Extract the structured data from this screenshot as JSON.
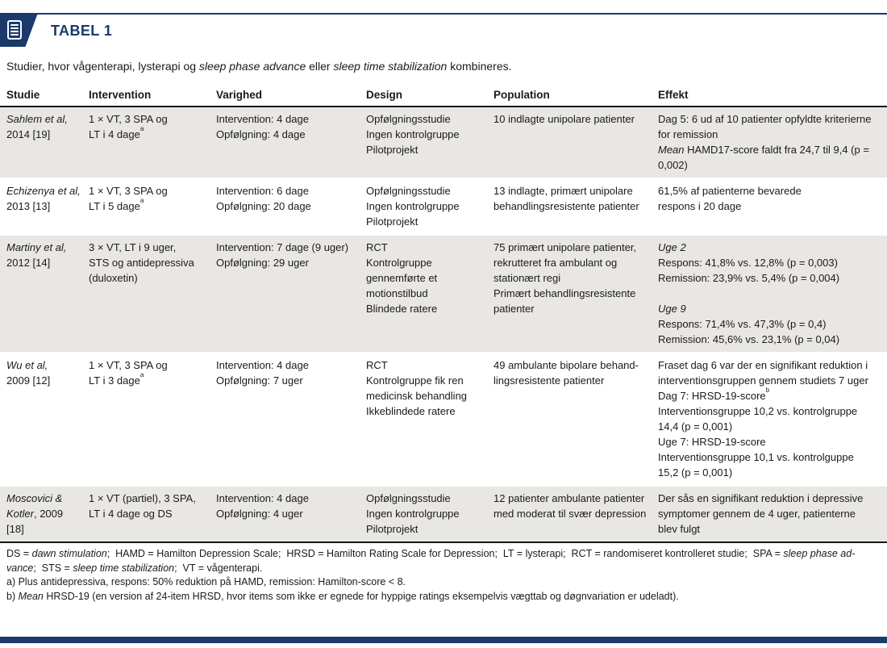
{
  "theme": {
    "accent_color": "#1b3a6b",
    "row_alt_color": "#e9e7e4",
    "icon": "table-list-icon"
  },
  "header": {
    "title": "TABEL 1"
  },
  "caption": "Studier, hvor vågenterapi, lysterapi og *sleep phase advance* eller *sleep time stabilization* kombineres.",
  "table": {
    "columns": [
      "Studie",
      "Intervention",
      "Varighed",
      "Design",
      "Population",
      "Effekt"
    ],
    "fields": [
      "studie",
      "intervention",
      "varighed",
      "design",
      "population",
      "effekt"
    ],
    "rows": [
      {
        "studie": "*Sahlem et al,*\n2014 [19]",
        "intervention": "1 × VT, 3 SPA og\nLT i 4 dage^a",
        "varighed": "Intervention: 4 dage\nOpfølgning: 4 dage",
        "design": "Opfølgningsstudie\nIngen kontrolgruppe\nPilotprojekt",
        "population": "10 indlagte unipolare patienter",
        "effekt": "Dag 5: 6 ud af 10 patienter opfyldte kriterierne for remission\n*Mean* HAMD17-score faldt fra 24,7 til 9,4 (p = 0,002)"
      },
      {
        "studie": "*Echizenya et al,*\n2013 [13]",
        "intervention": "1 × VT, 3 SPA og\nLT i 5 dage^a",
        "varighed": "Intervention: 6 dage\nOpfølgning: 20 dage",
        "design": "Opfølgningsstudie\nIngen kontrolgruppe\nPilotprojekt",
        "population": "13 indlagte, primært unipolare behandlingsresistente patienter",
        "effekt": "61,5% af patienterne bevarede\nrespons i 20 dage"
      },
      {
        "studie": "*Martiny et al,*\n2012 [14]",
        "intervention": "3 × VT, LT i 9 uger,\nSTS og antidepressiva\n(duloxetin)",
        "varighed": "Intervention: 7 dage (9 uger)\nOpfølgning: 29 uger",
        "design": "RCT\nKontrolgruppe\ngennemførte et\nmotionstilbud\nBlindede ratere",
        "population": "75 primært unipolare patienter, rekrutteret fra ambulant og stationært regi\nPrimært behandlingsresistente patienter",
        "effekt": "*Uge 2*\nRespons: 41,8% vs. 12,8% (p = 0,003)\nRemission: 23,9% vs. 5,4% (p = 0,004)\n\n*Uge 9*\nRespons: 71,4% vs. 47,3% (p = 0,4)\nRemission: 45,6% vs. 23,1% (p = 0,04)"
      },
      {
        "studie": "*Wu et al,*\n2009 [12]",
        "intervention": "1 × VT, 3 SPA og\nLT i 3 dage^a",
        "varighed": "Intervention: 4 dage\nOpfølgning: 7 uger",
        "design": "RCT\nKontrolgruppe fik ren\nmedicinsk behandling\nIkkeblindede ratere",
        "population": "49 ambulante bipolare behand-\nlingsresistente patienter",
        "effekt": "Fraset dag 6 var der en signifikant reduktion i interventionsgruppen gennem studiets 7 uger\nDag 7: HRSD-19-score^b\nInterventionsgruppe 10,2 vs. kontrolgruppe 14,4 (p = 0,001)\nUge 7: HRSD-19-score\nInterventionsgruppe 10,1 vs. kontrolguppe 15,2 (p = 0,001)"
      },
      {
        "studie": "*Moscovici &*\n*Kotler*, 2009\n[18]",
        "intervention": "1 × VT (partiel), 3 SPA,\nLT i 4 dage og DS",
        "varighed": "Intervention: 4 dage\nOpfølgning: 4 uger",
        "design": "Opfølgningsstudie\nIngen kontrolgruppe\nPilotprojekt",
        "population": "12 patienter ambulante patienter med moderat til svær depression",
        "effekt": "Der sås en signifikant reduktion i depressive symptomer gennem de 4 uger, patienterne blev fulgt"
      }
    ]
  },
  "footnotes": [
    "DS = *dawn stimulation*;  HAMD = Hamilton Depression Scale;  HRSD = Hamilton Rating Scale for Depression;  LT = lysterapi;  RCT = randomiseret kontrolleret studie;  SPA = *sleep phase ad-*\n*vance*;  STS = *sleep time stabilization*;  VT = vågenterapi.",
    "a) Plus antidepressiva, respons: 50% reduktion på HAMD, remission: Hamilton-score < 8.",
    "b) *Mean* HRSD-19 (en version af 24-item HRSD, hvor items som ikke er egnede for hyppige ratings eksempelvis vægttab og døgnvariation er udeladt)."
  ]
}
